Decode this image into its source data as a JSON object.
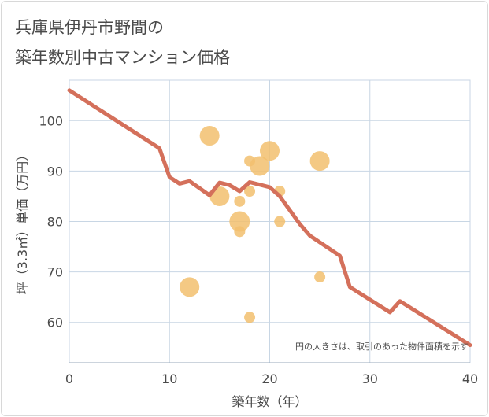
{
  "title_line1": "兵庫県伊丹市野間の",
  "title_line2": "築年数別中古マンション価格",
  "chart_data": {
    "type": "scatter",
    "xlabel": "築年数（年）",
    "ylabel": "坪（3.3㎡）単価（万円）",
    "xlim": [
      0,
      40
    ],
    "ylim": [
      52,
      108
    ],
    "x_ticks": [
      0,
      10,
      20,
      30,
      40
    ],
    "y_ticks": [
      60,
      70,
      80,
      90,
      100
    ],
    "grid": true,
    "note": "円の大きさは、取引のあった物件面積を示す",
    "colors": {
      "bubble": "#f2c06e",
      "trend": "#d4705b",
      "grid": "#c8d6e4"
    },
    "bubbles": [
      {
        "x": 12,
        "y": 67,
        "size": 3
      },
      {
        "x": 14,
        "y": 97,
        "size": 3
      },
      {
        "x": 15,
        "y": 85,
        "size": 3
      },
      {
        "x": 17,
        "y": 84,
        "size": 1
      },
      {
        "x": 17,
        "y": 80,
        "size": 4
      },
      {
        "x": 17,
        "y": 78,
        "size": 1
      },
      {
        "x": 18,
        "y": 92,
        "size": 1
      },
      {
        "x": 18,
        "y": 86,
        "size": 1
      },
      {
        "x": 18,
        "y": 61,
        "size": 1
      },
      {
        "x": 19,
        "y": 91,
        "size": 3
      },
      {
        "x": 20,
        "y": 94,
        "size": 3
      },
      {
        "x": 21,
        "y": 86,
        "size": 1
      },
      {
        "x": 21,
        "y": 80,
        "size": 1
      },
      {
        "x": 25,
        "y": 92,
        "size": 3
      },
      {
        "x": 25,
        "y": 69,
        "size": 1
      }
    ],
    "trend": [
      {
        "x": 0,
        "y": 106
      },
      {
        "x": 9,
        "y": 94.5
      },
      {
        "x": 10,
        "y": 88.8
      },
      {
        "x": 11,
        "y": 87.5
      },
      {
        "x": 12,
        "y": 88.0
      },
      {
        "x": 14,
        "y": 85.2
      },
      {
        "x": 15,
        "y": 87.7
      },
      {
        "x": 16,
        "y": 87.2
      },
      {
        "x": 17,
        "y": 86.0
      },
      {
        "x": 18,
        "y": 87.8
      },
      {
        "x": 19,
        "y": 87.3
      },
      {
        "x": 20,
        "y": 86.8
      },
      {
        "x": 21,
        "y": 85.0
      },
      {
        "x": 23,
        "y": 79.5
      },
      {
        "x": 24,
        "y": 77.2
      },
      {
        "x": 27,
        "y": 73.2
      },
      {
        "x": 28,
        "y": 67.0
      },
      {
        "x": 32,
        "y": 62.0
      },
      {
        "x": 33,
        "y": 64.2
      },
      {
        "x": 40,
        "y": 55.5
      }
    ]
  }
}
